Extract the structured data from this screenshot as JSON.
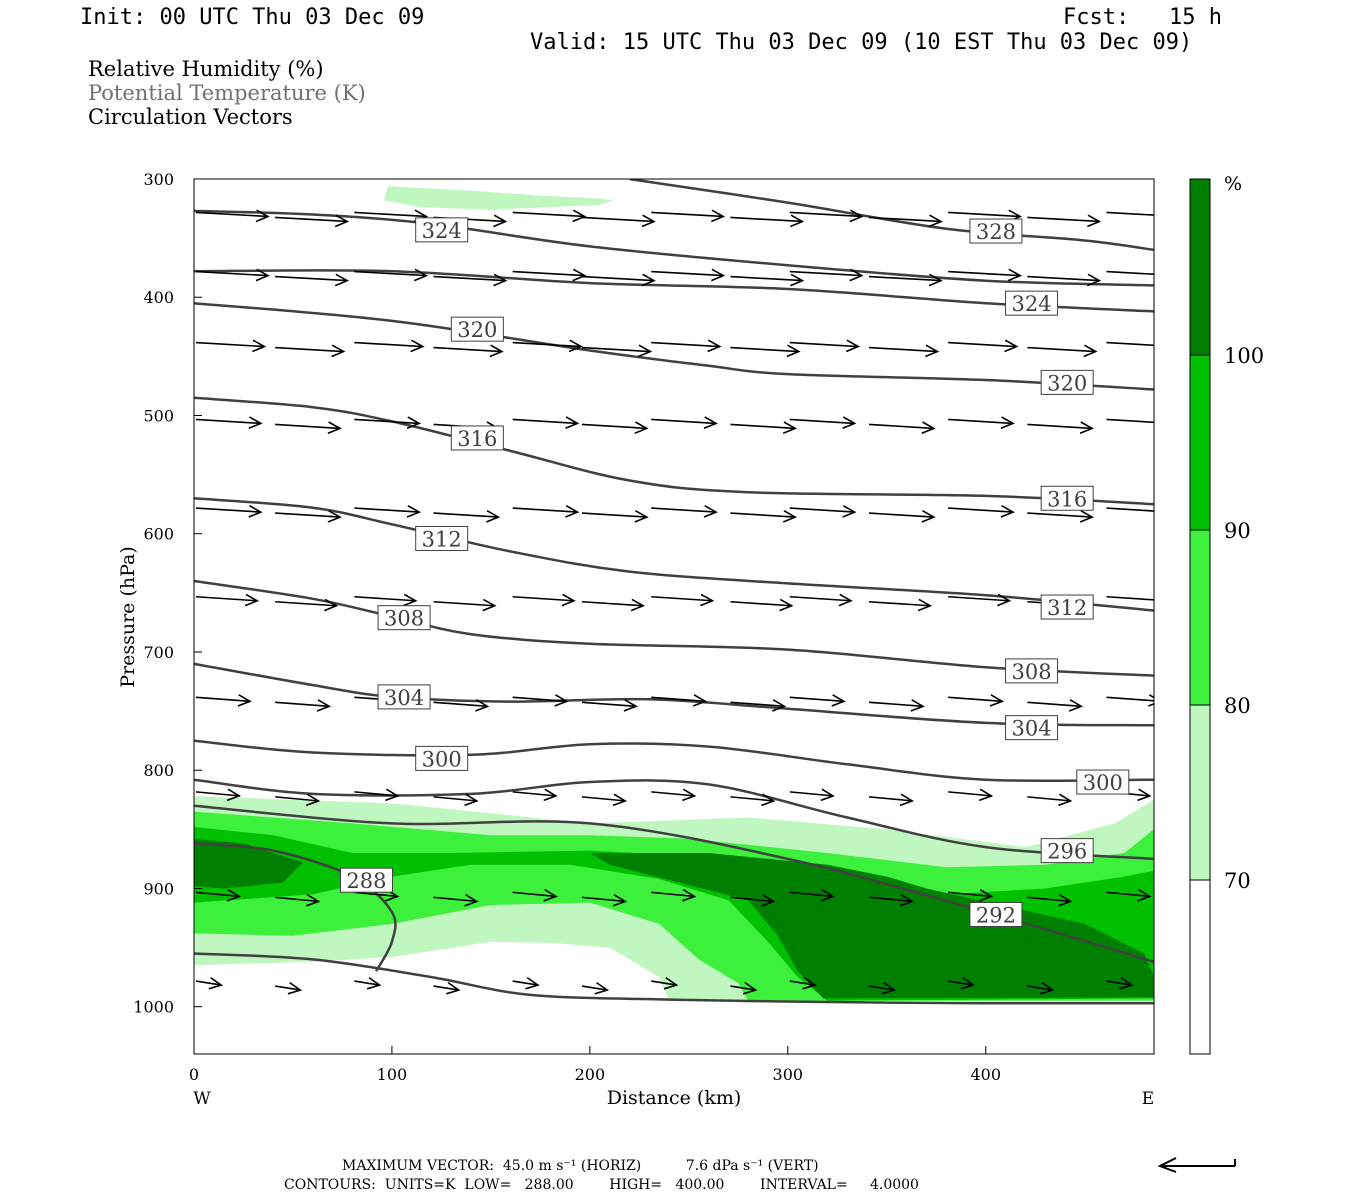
{
  "header": {
    "init": "Init: 00 UTC Thu 03 Dec 09",
    "fcst": "Fcst:   15 h",
    "valid": "Valid: 15 UTC Thu 03 Dec 09 (10 EST Thu 03 Dec 09)"
  },
  "legend": {
    "rh": "Relative Humidity (%)",
    "theta": "Potential Temperature (K)",
    "vectors": "Circulation Vectors"
  },
  "colors": {
    "rh70": "#c0f7c0",
    "rh80": "#3cf03c",
    "rh90": "#00c000",
    "rh100": "#008000",
    "contour": "#404040",
    "theta_label": "#404040",
    "vector": "#000000"
  },
  "chart_data": {
    "type": "contour",
    "title": "",
    "xlabel": "Distance (km)",
    "ylabel": "Pressure (hPa)",
    "xlim": [
      0,
      485
    ],
    "ylim": [
      1040,
      300
    ],
    "x_ticks": [
      "0",
      "100",
      "200",
      "300",
      "400"
    ],
    "y_ticks": [
      "300",
      "400",
      "500",
      "600",
      "700",
      "800",
      "900",
      "1000"
    ],
    "x_end_labels": {
      "left": "W",
      "right": "E"
    },
    "colorbar": {
      "unit": "%",
      "levels": [
        "70",
        "80",
        "90",
        "100"
      ]
    },
    "theta_contours": [
      {
        "value": 324,
        "label": "324",
        "points": [
          [
            0,
            327
          ],
          [
            60,
            330
          ],
          [
            120,
            338
          ],
          [
            200,
            357
          ],
          [
            300,
            373
          ],
          [
            400,
            386
          ],
          [
            485,
            390
          ]
        ]
      },
      {
        "value": 328,
        "label": "328",
        "points": [
          [
            220,
            300
          ],
          [
            300,
            320
          ],
          [
            380,
            342
          ],
          [
            450,
            352
          ],
          [
            485,
            360
          ]
        ]
      },
      {
        "value": 324,
        "label": "324",
        "points": [
          [
            0,
            378
          ],
          [
            100,
            378
          ],
          [
            200,
            388
          ],
          [
            300,
            393
          ],
          [
            400,
            405
          ],
          [
            485,
            412
          ]
        ]
      },
      {
        "value": 320,
        "label": "320",
        "points": [
          [
            0,
            405
          ],
          [
            100,
            420
          ],
          [
            200,
            445
          ],
          [
            260,
            458
          ],
          [
            300,
            465
          ],
          [
            400,
            470
          ],
          [
            485,
            478
          ]
        ]
      },
      {
        "value": 316,
        "label": "316",
        "points": [
          [
            0,
            485
          ],
          [
            60,
            493
          ],
          [
            100,
            505
          ],
          [
            160,
            530
          ],
          [
            220,
            555
          ],
          [
            280,
            565
          ],
          [
            400,
            568
          ],
          [
            485,
            575
          ]
        ]
      },
      {
        "value": 312,
        "label": "312",
        "points": [
          [
            0,
            570
          ],
          [
            60,
            578
          ],
          [
            100,
            592
          ],
          [
            160,
            615
          ],
          [
            220,
            632
          ],
          [
            300,
            642
          ],
          [
            400,
            652
          ],
          [
            485,
            665
          ]
        ]
      },
      {
        "value": 308,
        "label": "308",
        "points": [
          [
            0,
            640
          ],
          [
            60,
            655
          ],
          [
            100,
            670
          ],
          [
            140,
            685
          ],
          [
            200,
            693
          ],
          [
            300,
            698
          ],
          [
            400,
            713
          ],
          [
            485,
            720
          ]
        ]
      },
      {
        "value": 304,
        "label": "304",
        "points": [
          [
            0,
            710
          ],
          [
            60,
            728
          ],
          [
            100,
            738
          ],
          [
            160,
            742
          ],
          [
            230,
            740
          ],
          [
            300,
            748
          ],
          [
            400,
            760
          ],
          [
            485,
            762
          ]
        ]
      },
      {
        "value": 300,
        "label": "300",
        "points": [
          [
            0,
            775
          ],
          [
            60,
            785
          ],
          [
            140,
            787
          ],
          [
            200,
            778
          ],
          [
            260,
            780
          ],
          [
            330,
            795
          ],
          [
            400,
            808
          ],
          [
            485,
            808
          ]
        ]
      },
      {
        "value": 296,
        "label": "296",
        "points": [
          [
            0,
            808
          ],
          [
            60,
            820
          ],
          [
            140,
            820
          ],
          [
            200,
            810
          ],
          [
            260,
            812
          ],
          [
            330,
            840
          ],
          [
            400,
            865
          ],
          [
            485,
            875
          ]
        ]
      },
      {
        "value": 292,
        "label": "292",
        "points": [
          [
            0,
            830
          ],
          [
            100,
            845
          ],
          [
            200,
            845
          ],
          [
            300,
            875
          ],
          [
            400,
            920
          ],
          [
            485,
            962
          ]
        ]
      },
      {
        "value": 288,
        "label": "288",
        "points": [
          [
            0,
            862
          ],
          [
            40,
            868
          ],
          [
            80,
            890
          ],
          [
            100,
            920
          ],
          [
            100,
            945
          ],
          [
            92,
            970
          ]
        ]
      },
      {
        "value": 0,
        "label": "",
        "points": [
          [
            0,
            955
          ],
          [
            60,
            960
          ],
          [
            120,
            975
          ],
          [
            170,
            990
          ],
          [
            240,
            994
          ],
          [
            320,
            996
          ],
          [
            400,
            997
          ],
          [
            485,
            997
          ]
        ]
      }
    ],
    "theta_labels": [
      {
        "text": "324",
        "x": 112,
        "y": 343
      },
      {
        "text": "328",
        "x": 392,
        "y": 344
      },
      {
        "text": "324",
        "x": 410,
        "y": 405
      },
      {
        "text": "320",
        "x": 130,
        "y": 427
      },
      {
        "text": "320",
        "x": 428,
        "y": 472
      },
      {
        "text": "316",
        "x": 130,
        "y": 519
      },
      {
        "text": "316",
        "x": 428,
        "y": 570
      },
      {
        "text": "312",
        "x": 112,
        "y": 604
      },
      {
        "text": "312",
        "x": 428,
        "y": 662
      },
      {
        "text": "308",
        "x": 93,
        "y": 671
      },
      {
        "text": "308",
        "x": 410,
        "y": 716
      },
      {
        "text": "304",
        "x": 93,
        "y": 738
      },
      {
        "text": "304",
        "x": 410,
        "y": 764
      },
      {
        "text": "300",
        "x": 112,
        "y": 790
      },
      {
        "text": "300",
        "x": 446,
        "y": 810
      },
      {
        "text": "296",
        "x": 428,
        "y": 868
      },
      {
        "text": "288",
        "x": 74,
        "y": 893
      },
      {
        "text": "292",
        "x": 392,
        "y": 922
      }
    ],
    "rh_regions": [
      {
        "level": "70",
        "points": [
          [
            0,
            822
          ],
          [
            100,
            828
          ],
          [
            200,
            845
          ],
          [
            280,
            840
          ],
          [
            350,
            850
          ],
          [
            420,
            865
          ],
          [
            465,
            845
          ],
          [
            485,
            825
          ],
          [
            485,
            995
          ],
          [
            240,
            995
          ],
          [
            235,
            975
          ],
          [
            210,
            950
          ],
          [
            180,
            946
          ],
          [
            150,
            945
          ],
          [
            100,
            958
          ],
          [
            60,
            962
          ],
          [
            0,
            965
          ]
        ]
      },
      {
        "level": "70",
        "points": [
          [
            98,
            306
          ],
          [
            140,
            310
          ],
          [
            175,
            314
          ],
          [
            200,
            316
          ],
          [
            212,
            318
          ],
          [
            205,
            322
          ],
          [
            150,
            326
          ],
          [
            115,
            324
          ],
          [
            96,
            318
          ]
        ]
      },
      {
        "level": "80",
        "points": [
          [
            0,
            835
          ],
          [
            80,
            845
          ],
          [
            150,
            855
          ],
          [
            200,
            855
          ],
          [
            250,
            858
          ],
          [
            320,
            870
          ],
          [
            380,
            882
          ],
          [
            430,
            880
          ],
          [
            470,
            870
          ],
          [
            485,
            850
          ],
          [
            485,
            995
          ],
          [
            280,
            995
          ],
          [
            275,
            980
          ],
          [
            255,
            960
          ],
          [
            235,
            930
          ],
          [
            200,
            912
          ],
          [
            150,
            914
          ],
          [
            100,
            930
          ],
          [
            50,
            940
          ],
          [
            0,
            938
          ]
        ]
      },
      {
        "level": "90",
        "points": [
          [
            0,
            848
          ],
          [
            40,
            855
          ],
          [
            80,
            870
          ],
          [
            130,
            870
          ],
          [
            200,
            868
          ],
          [
            280,
            875
          ],
          [
            330,
            890
          ],
          [
            380,
            905
          ],
          [
            430,
            900
          ],
          [
            470,
            890
          ],
          [
            485,
            885
          ],
          [
            485,
            993
          ],
          [
            320,
            995
          ],
          [
            305,
            975
          ],
          [
            290,
            945
          ],
          [
            270,
            910
          ],
          [
            235,
            892
          ],
          [
            190,
            880
          ],
          [
            140,
            880
          ],
          [
            100,
            890
          ],
          [
            60,
            905
          ],
          [
            0,
            912
          ]
        ]
      },
      {
        "level": "100",
        "points": [
          [
            200,
            870
          ],
          [
            260,
            870
          ],
          [
            320,
            880
          ],
          [
            350,
            890
          ],
          [
            370,
            900
          ],
          [
            410,
            915
          ],
          [
            450,
            930
          ],
          [
            480,
            955
          ],
          [
            485,
            975
          ],
          [
            485,
            992
          ],
          [
            318,
            993
          ],
          [
            305,
            970
          ],
          [
            295,
            940
          ],
          [
            280,
            910
          ],
          [
            245,
            895
          ],
          [
            210,
            880
          ]
        ]
      },
      {
        "level": "100",
        "points": [
          [
            0,
            858
          ],
          [
            25,
            862
          ],
          [
            55,
            878
          ],
          [
            45,
            895
          ],
          [
            15,
            900
          ],
          [
            0,
            898
          ]
        ]
      }
    ],
    "vector_rows": [
      {
        "p": 330,
        "x": [
          0,
          40,
          80,
          120,
          160,
          195,
          230,
          270,
          300,
          340,
          380,
          420,
          460
        ],
        "u": 1.0
      },
      {
        "p": 380,
        "x": [
          0,
          40,
          80,
          120,
          160,
          195,
          230,
          270,
          300,
          340,
          380,
          420,
          460
        ],
        "u": 1.0
      },
      {
        "p": 440,
        "x": [
          0,
          40,
          80,
          120,
          160,
          195,
          230,
          270,
          300,
          340,
          380,
          420,
          460
        ],
        "u": 0.95
      },
      {
        "p": 505,
        "x": [
          0,
          40,
          80,
          120,
          160,
          195,
          230,
          270,
          300,
          340,
          380,
          420,
          460
        ],
        "u": 0.9
      },
      {
        "p": 580,
        "x": [
          0,
          40,
          80,
          120,
          160,
          195,
          230,
          270,
          300,
          340,
          380,
          420,
          460
        ],
        "u": 0.9
      },
      {
        "p": 655,
        "x": [
          0,
          40,
          80,
          120,
          160,
          195,
          230,
          270,
          300,
          340,
          380,
          420,
          460
        ],
        "u": 0.85
      },
      {
        "p": 740,
        "x": [
          0,
          40,
          80,
          120,
          160,
          195,
          230,
          270,
          300,
          340,
          380,
          420,
          460
        ],
        "u": 0.75
      },
      {
        "p": 820,
        "x": [
          0,
          40,
          80,
          120,
          160,
          195,
          230,
          270,
          300,
          340,
          380,
          420,
          460
        ],
        "u": 0.6
      },
      {
        "p": 905,
        "x": [
          0,
          40,
          80,
          120,
          160,
          195,
          230,
          270,
          300,
          340,
          380,
          420,
          460
        ],
        "u": 0.6
      },
      {
        "p": 980,
        "x": [
          0,
          40,
          80,
          120,
          160,
          195,
          230,
          270,
          300,
          340,
          380,
          420,
          460
        ],
        "u": 0.35
      }
    ]
  },
  "footer": {
    "max_vector": "MAXIMUM VECTOR:  45.0 m s⁻¹ (HORIZ)          7.6 dPa s⁻¹ (VERT)",
    "contours": "CONTOURS:  UNITS=K  LOW=   288.00        HIGH=   400.00        INTERVAL=     4.0000"
  }
}
